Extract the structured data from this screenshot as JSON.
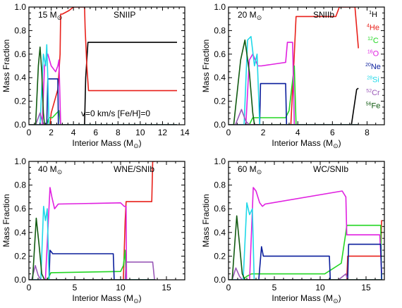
{
  "panel_labels": {
    "mass": "M",
    "sun": "⊙",
    "species_mass": [
      "1",
      "4",
      "12",
      "16",
      "20",
      "28",
      "52",
      "56"
    ],
    "species_sym": [
      "H",
      "He",
      "C",
      "O",
      "Ne",
      "Si",
      "Cr",
      "Fe"
    ],
    "annotation": "v=0 km/s   [Fe/H]=0"
  },
  "colors": {
    "H": "#000000",
    "He": "#e8201a",
    "C": "#22d622",
    "O": "#e020e0",
    "Ne": "#0a1e9c",
    "Si": "#20d8e8",
    "Cr": "#9a5ab8",
    "Fe": "#105a10"
  },
  "chart_data": [
    {
      "type": "line",
      "mass_label": "15",
      "sn_type": "SNIIP",
      "xlabel": "Interior Mass (M⊙)",
      "ylabel": "Mass Fraction",
      "xlim": [
        0,
        14
      ],
      "ylim": [
        0,
        1
      ],
      "xticks": [
        0,
        2,
        4,
        6,
        8,
        10,
        12,
        14
      ],
      "yticks": [
        0.0,
        0.2,
        0.4,
        0.6,
        0.8,
        1.0
      ],
      "legend": false,
      "annotation": true,
      "series": [
        {
          "name": "H",
          "x": [
            0,
            5.0,
            5.1,
            5.3,
            13.3
          ],
          "y": [
            0,
            0,
            0.4,
            0.7,
            0.7
          ]
        },
        {
          "name": "He",
          "x": [
            0,
            1.9,
            2.0,
            2.6,
            2.8,
            2.85,
            3.0,
            3.6,
            4.0,
            5.0,
            5.05,
            5.2,
            5.35,
            13.3
          ],
          "y": [
            0,
            0,
            0.1,
            0.3,
            0.6,
            0.94,
            0.94,
            0.97,
            1.0,
            1.0,
            0.82,
            0.5,
            0.29,
            0.29
          ]
        },
        {
          "name": "C",
          "x": [
            0,
            1.6,
            1.8,
            2.1,
            2.7,
            2.85,
            13.3
          ],
          "y": [
            0,
            0,
            0.06,
            0.06,
            0.12,
            0.0,
            0.0
          ]
        },
        {
          "name": "O",
          "x": [
            0,
            1.2,
            1.4,
            1.7,
            2.0,
            2.4,
            2.6,
            2.7,
            2.85,
            13.3
          ],
          "y": [
            0,
            0,
            0.5,
            0.6,
            0.5,
            0.45,
            0.5,
            0.55,
            0.0,
            0.0
          ]
        },
        {
          "name": "Ne",
          "x": [
            0,
            1.6,
            1.7,
            2.6,
            2.65,
            13.3
          ],
          "y": [
            0,
            0,
            0.39,
            0.39,
            0.0,
            0.0
          ]
        },
        {
          "name": "Si",
          "x": [
            0,
            1.0,
            1.3,
            1.5,
            1.6,
            1.7,
            1.8,
            13.3
          ],
          "y": [
            0,
            0,
            0.6,
            0.5,
            0.68,
            0.4,
            0.0,
            0.0
          ]
        },
        {
          "name": "Cr",
          "x": [
            0,
            0.6,
            1.0,
            1.2,
            1.35,
            13.3
          ],
          "y": [
            0,
            0,
            0.1,
            0.03,
            0.0,
            0.0
          ]
        },
        {
          "name": "Fe",
          "x": [
            0,
            0.6,
            0.85,
            1.0,
            1.15,
            1.3,
            1.4,
            13.3
          ],
          "y": [
            0,
            0,
            0.5,
            0.66,
            0.45,
            0.1,
            0.0,
            0.0
          ]
        }
      ]
    },
    {
      "type": "line",
      "mass_label": "20",
      "sn_type": "SNIIb",
      "xlabel": "Interior Mass (M⊙)",
      "ylabel": "Mass Fraction",
      "xlim": [
        0,
        9
      ],
      "ylim": [
        0,
        1
      ],
      "xticks": [
        0,
        2,
        4,
        6,
        8
      ],
      "yticks": [
        0.0,
        0.2,
        0.4,
        0.6,
        0.8,
        1.0
      ],
      "legend": true,
      "annotation": false,
      "series": [
        {
          "name": "H",
          "x": [
            0,
            7.1,
            7.4,
            7.5
          ],
          "y": [
            0,
            0,
            0.3,
            0.31
          ]
        },
        {
          "name": "He",
          "x": [
            0,
            3.6,
            3.7,
            3.8,
            3.9,
            6.2,
            6.4,
            7.3,
            7.5
          ],
          "y": [
            0,
            0,
            0.3,
            0.6,
            0.92,
            0.92,
            1.0,
            1.0,
            0.65
          ]
        },
        {
          "name": "C",
          "x": [
            0,
            1.2,
            1.4,
            3.3,
            3.5,
            3.8,
            3.9,
            7.5
          ],
          "y": [
            0,
            0,
            0.06,
            0.06,
            0.12,
            0.5,
            0.0,
            0.0
          ]
        },
        {
          "name": "O",
          "x": [
            0,
            1.0,
            1.2,
            1.4,
            1.7,
            1.9,
            3.3,
            3.4,
            3.7,
            3.8,
            7.5
          ],
          "y": [
            0,
            0,
            0.55,
            0.6,
            0.5,
            0.5,
            0.53,
            0.7,
            0.7,
            0.0,
            0.0
          ]
        },
        {
          "name": "Ne",
          "x": [
            0,
            1.8,
            1.85,
            3.3,
            3.35,
            7.5
          ],
          "y": [
            0,
            0,
            0.35,
            0.35,
            0.0,
            0.0
          ]
        },
        {
          "name": "Si",
          "x": [
            0,
            0.9,
            1.1,
            1.3,
            1.5,
            1.65,
            1.8,
            7.5
          ],
          "y": [
            0,
            0,
            0.72,
            0.75,
            0.5,
            0.6,
            0.0,
            0.0
          ]
        },
        {
          "name": "Cr",
          "x": [
            0,
            0.4,
            0.75,
            1.0,
            1.2,
            7.5
          ],
          "y": [
            0,
            0,
            0.13,
            0.03,
            0.0,
            0.0
          ]
        },
        {
          "name": "Fe",
          "x": [
            0,
            0.3,
            0.7,
            0.95,
            1.2,
            1.4,
            1.5,
            7.5
          ],
          "y": [
            0,
            0,
            0.55,
            0.72,
            0.45,
            0.1,
            0.0,
            0.0
          ]
        }
      ]
    },
    {
      "type": "line",
      "mass_label": "40",
      "sn_type": "WNE/SNIb",
      "xlabel": "Interior Mass (M⊙)",
      "ylabel": "Mass Fraction",
      "xlim": [
        0,
        17
      ],
      "ylim": [
        0,
        1
      ],
      "xticks": [
        0,
        5,
        10,
        15
      ],
      "yticks": [
        0.0,
        0.2,
        0.4,
        0.6,
        0.8,
        1.0
      ],
      "legend": false,
      "annotation": false,
      "series": [
        {
          "name": "He",
          "x": [
            0,
            10.3,
            10.5,
            10.6,
            13.4,
            13.5,
            13.8
          ],
          "y": [
            0,
            0,
            0.5,
            0.66,
            0.66,
            1.0,
            1.0
          ]
        },
        {
          "name": "C",
          "x": [
            0,
            2.0,
            2.4,
            10.0,
            10.3,
            10.5,
            10.6,
            13.8
          ],
          "y": [
            0,
            0,
            0.06,
            0.07,
            0.12,
            0.25,
            0.0,
            0.0
          ]
        },
        {
          "name": "O",
          "x": [
            0,
            1.8,
            2.3,
            2.5,
            2.8,
            3.2,
            10.0,
            10.4,
            10.6,
            10.65,
            13.8
          ],
          "y": [
            0,
            0,
            0.78,
            0.7,
            0.6,
            0.64,
            0.65,
            0.62,
            0.62,
            0.0,
            0.0
          ]
        },
        {
          "name": "Ne",
          "x": [
            0,
            2.2,
            2.3,
            2.6,
            9.2,
            9.3,
            13.8
          ],
          "y": [
            0,
            0,
            0.25,
            0.22,
            0.22,
            0.0,
            0.0
          ]
        },
        {
          "name": "Si",
          "x": [
            0,
            1.3,
            1.6,
            1.8,
            2.0,
            2.2,
            13.8
          ],
          "y": [
            0,
            0,
            0.62,
            0.5,
            0.6,
            0.0,
            0.0
          ]
        },
        {
          "name": "Cr",
          "x": [
            0,
            0.3,
            0.7,
            1.0,
            1.3,
            10.5,
            10.6,
            13.5,
            13.7,
            13.8
          ],
          "y": [
            0,
            0,
            0.12,
            0.04,
            0.0,
            0.0,
            0.15,
            0.15,
            0.0,
            0.0
          ]
        },
        {
          "name": "Fe",
          "x": [
            0,
            0.4,
            0.8,
            1.1,
            1.4,
            1.7,
            13.8
          ],
          "y": [
            0,
            0,
            0.52,
            0.3,
            0.05,
            0.0,
            0.0
          ]
        }
      ]
    },
    {
      "type": "line",
      "mass_label": "60",
      "sn_type": "WC/SNIb",
      "xlabel": "Interior Mass (M⊙)",
      "ylabel": "Mass Fraction",
      "xlim": [
        0,
        17
      ],
      "ylim": [
        0,
        1
      ],
      "xticks": [
        0,
        5,
        10,
        15
      ],
      "yticks": [
        0.0,
        0.2,
        0.4,
        0.6,
        0.8,
        1.0
      ],
      "legend": false,
      "annotation": false,
      "series": [
        {
          "name": "He",
          "x": [
            0,
            12.9,
            13.0,
            16.6,
            16.7,
            16.8
          ],
          "y": [
            0,
            0,
            0.2,
            0.2,
            0.5,
            0.5
          ]
        },
        {
          "name": "C",
          "x": [
            0,
            1.5,
            2.0,
            2.5,
            10.5,
            12.3,
            12.8,
            12.9,
            16.6,
            16.7
          ],
          "y": [
            0,
            0,
            0.03,
            0.05,
            0.05,
            0.14,
            0.4,
            0.46,
            0.46,
            0.0
          ]
        },
        {
          "name": "O",
          "x": [
            0,
            2.3,
            2.7,
            3.0,
            3.4,
            3.7,
            4.0,
            12.4,
            12.8,
            12.9,
            16.5,
            16.7
          ],
          "y": [
            0,
            0,
            0.78,
            0.75,
            0.65,
            0.62,
            0.64,
            0.75,
            0.7,
            0.38,
            0.38,
            0.06
          ]
        },
        {
          "name": "Ne",
          "x": [
            0,
            3.3,
            3.6,
            3.8,
            11.0,
            11.1,
            13.0,
            13.1,
            16.6,
            16.7
          ],
          "y": [
            0,
            0,
            0.28,
            0.2,
            0.2,
            0.0,
            0.0,
            0.3,
            0.3,
            0.0
          ]
        },
        {
          "name": "Si",
          "x": [
            0,
            1.6,
            2.0,
            2.3,
            2.6,
            2.8,
            16.8
          ],
          "y": [
            0,
            0,
            0.65,
            0.55,
            0.6,
            0.0,
            0.0
          ]
        },
        {
          "name": "Cr",
          "x": [
            0,
            0.4,
            0.8,
            1.2,
            1.5,
            12.0,
            12.8,
            13.0,
            16.8
          ],
          "y": [
            0,
            0,
            0.1,
            0.03,
            0.0,
            0.0,
            0.05,
            0.0,
            0.0
          ]
        },
        {
          "name": "Fe",
          "x": [
            0,
            0.4,
            0.9,
            1.2,
            1.5,
            1.8,
            16.8
          ],
          "y": [
            0,
            0,
            0.54,
            0.3,
            0.05,
            0.0,
            0.0
          ]
        }
      ]
    }
  ]
}
